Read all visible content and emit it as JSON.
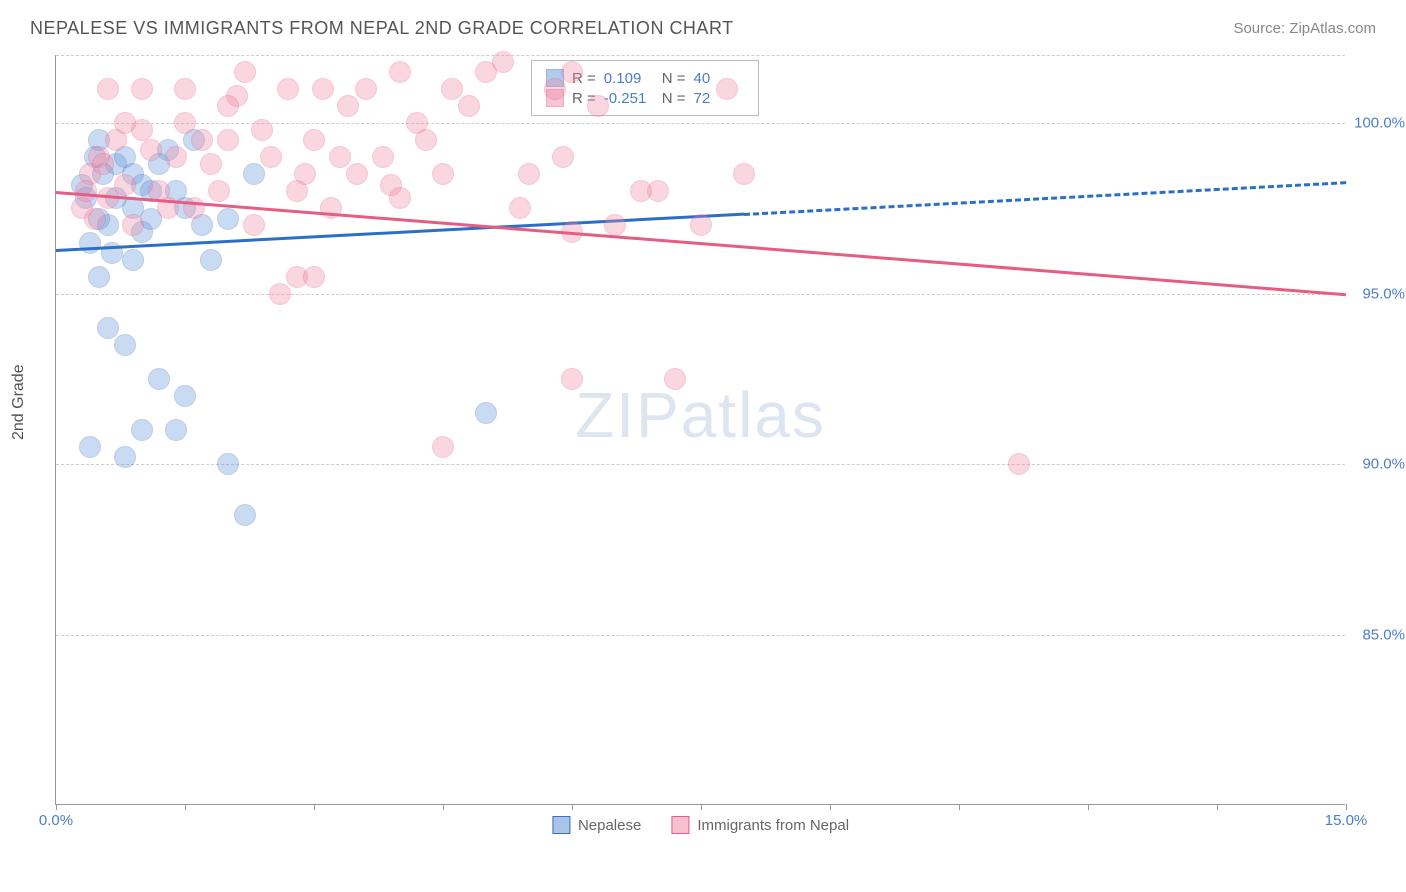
{
  "header": {
    "title": "NEPALESE VS IMMIGRANTS FROM NEPAL 2ND GRADE CORRELATION CHART",
    "source": "Source: ZipAtlas.com"
  },
  "chart": {
    "type": "scatter",
    "y_label": "2nd Grade",
    "background_color": "#ffffff",
    "grid_color": "#cccccc",
    "axis_color": "#999999",
    "tick_label_color": "#4a7ec9",
    "x_range": [
      0,
      15
    ],
    "y_range": [
      80,
      102
    ],
    "x_ticks": [
      0,
      1.5,
      3,
      4.5,
      6,
      7.5,
      9,
      10.5,
      12,
      13.5,
      15
    ],
    "x_tick_labels": {
      "0": "0.0%",
      "15": "15.0%"
    },
    "y_gridlines": [
      85,
      90,
      95,
      100,
      102
    ],
    "y_tick_labels": {
      "85": "85.0%",
      "90": "90.0%",
      "95": "95.0%",
      "100": "100.0%"
    },
    "marker_radius": 11,
    "marker_opacity": 0.35,
    "watermark": "ZIPatlas",
    "series": [
      {
        "id": "nepalese",
        "label": "Nepalese",
        "fill_color": "#6699dd",
        "stroke_color": "#3d6fb5",
        "R": "0.109",
        "N": "40",
        "trend": {
          "y_at_x0": 96.3,
          "y_at_x15": 98.3,
          "solid_until_x": 8.0,
          "color": "#2b6fc7",
          "width": 3
        },
        "points": [
          [
            0.3,
            98.2
          ],
          [
            0.5,
            99.5
          ],
          [
            0.6,
            97.0
          ],
          [
            0.7,
            98.8
          ],
          [
            0.8,
            99.0
          ],
          [
            0.4,
            96.5
          ],
          [
            0.9,
            97.5
          ],
          [
            1.0,
            96.8
          ],
          [
            1.1,
            98.0
          ],
          [
            0.5,
            95.5
          ],
          [
            1.3,
            99.2
          ],
          [
            1.5,
            97.5
          ],
          [
            0.6,
            94.0
          ],
          [
            0.8,
            93.5
          ],
          [
            1.0,
            91.0
          ],
          [
            1.2,
            92.5
          ],
          [
            1.4,
            91.0
          ],
          [
            1.6,
            99.5
          ],
          [
            1.7,
            97.0
          ],
          [
            1.8,
            96.0
          ],
          [
            0.4,
            90.5
          ],
          [
            0.8,
            90.2
          ],
          [
            1.5,
            92.0
          ],
          [
            2.0,
            90.0
          ],
          [
            2.2,
            88.5
          ],
          [
            2.3,
            98.5
          ],
          [
            2.0,
            97.2
          ],
          [
            0.9,
            98.5
          ],
          [
            1.1,
            97.2
          ],
          [
            5.0,
            91.5
          ],
          [
            0.35,
            97.8
          ],
          [
            0.7,
            97.8
          ],
          [
            0.55,
            98.5
          ],
          [
            0.45,
            99.0
          ],
          [
            0.65,
            96.2
          ],
          [
            1.0,
            98.2
          ],
          [
            1.2,
            98.8
          ],
          [
            1.4,
            98.0
          ],
          [
            0.5,
            97.2
          ],
          [
            0.9,
            96.0
          ]
        ]
      },
      {
        "id": "immigrants",
        "label": "Immigrants from Nepal",
        "fill_color": "#f08ca8",
        "stroke_color": "#e65c82",
        "R": "-0.251",
        "N": "72",
        "trend": {
          "y_at_x0": 98.0,
          "y_at_x15": 95.0,
          "solid_until_x": 15,
          "color": "#e65c82",
          "width": 3
        },
        "points": [
          [
            0.4,
            98.5
          ],
          [
            0.5,
            99.0
          ],
          [
            0.6,
            97.8
          ],
          [
            0.8,
            98.2
          ],
          [
            1.0,
            99.8
          ],
          [
            1.2,
            98.0
          ],
          [
            1.4,
            99.0
          ],
          [
            1.5,
            101.0
          ],
          [
            1.6,
            97.5
          ],
          [
            1.8,
            98.8
          ],
          [
            2.0,
            99.5
          ],
          [
            2.1,
            100.8
          ],
          [
            2.3,
            97.0
          ],
          [
            2.5,
            99.0
          ],
          [
            2.2,
            101.5
          ],
          [
            2.7,
            101.0
          ],
          [
            2.8,
            98.0
          ],
          [
            3.0,
            99.5
          ],
          [
            3.2,
            97.5
          ],
          [
            3.1,
            101.0
          ],
          [
            3.5,
            98.5
          ],
          [
            3.4,
            100.5
          ],
          [
            3.8,
            99.0
          ],
          [
            4.0,
            97.8
          ],
          [
            4.2,
            100.0
          ],
          [
            4.5,
            98.5
          ],
          [
            4.8,
            100.5
          ],
          [
            5.0,
            101.5
          ],
          [
            5.2,
            101.8
          ],
          [
            5.4,
            97.5
          ],
          [
            5.8,
            101.0
          ],
          [
            6.0,
            101.5
          ],
          [
            6.3,
            100.5
          ],
          [
            6.5,
            97.0
          ],
          [
            7.0,
            98.0
          ],
          [
            7.5,
            97.0
          ],
          [
            7.8,
            101.0
          ],
          [
            8.0,
            98.5
          ],
          [
            2.6,
            95.0
          ],
          [
            2.8,
            95.5
          ],
          [
            6.0,
            92.5
          ],
          [
            4.5,
            90.5
          ],
          [
            7.2,
            92.5
          ],
          [
            6.0,
            96.8
          ],
          [
            11.2,
            90.0
          ],
          [
            0.3,
            97.5
          ],
          [
            0.35,
            98.0
          ],
          [
            0.45,
            97.2
          ],
          [
            0.55,
            98.8
          ],
          [
            0.7,
            99.5
          ],
          [
            0.9,
            97.0
          ],
          [
            1.1,
            99.2
          ],
          [
            1.3,
            97.5
          ],
          [
            1.7,
            99.5
          ],
          [
            1.9,
            98.0
          ],
          [
            2.4,
            99.8
          ],
          [
            2.9,
            98.5
          ],
          [
            3.3,
            99.0
          ],
          [
            3.6,
            101.0
          ],
          [
            3.9,
            98.2
          ],
          [
            4.3,
            99.5
          ],
          [
            4.6,
            101.0
          ],
          [
            5.5,
            98.5
          ],
          [
            5.9,
            99.0
          ],
          [
            6.8,
            98.0
          ],
          [
            1.0,
            101.0
          ],
          [
            1.5,
            100.0
          ],
          [
            2.0,
            100.5
          ],
          [
            0.8,
            100.0
          ],
          [
            0.6,
            101.0
          ],
          [
            3.0,
            95.5
          ],
          [
            4.0,
            101.5
          ]
        ]
      }
    ]
  },
  "bottom_legend": [
    {
      "label": "Nepalese",
      "fill": "#a8c4e8",
      "stroke": "#3d6fb5"
    },
    {
      "label": "Immigrants from Nepal",
      "fill": "#f7c0d0",
      "stroke": "#e65c82"
    }
  ]
}
